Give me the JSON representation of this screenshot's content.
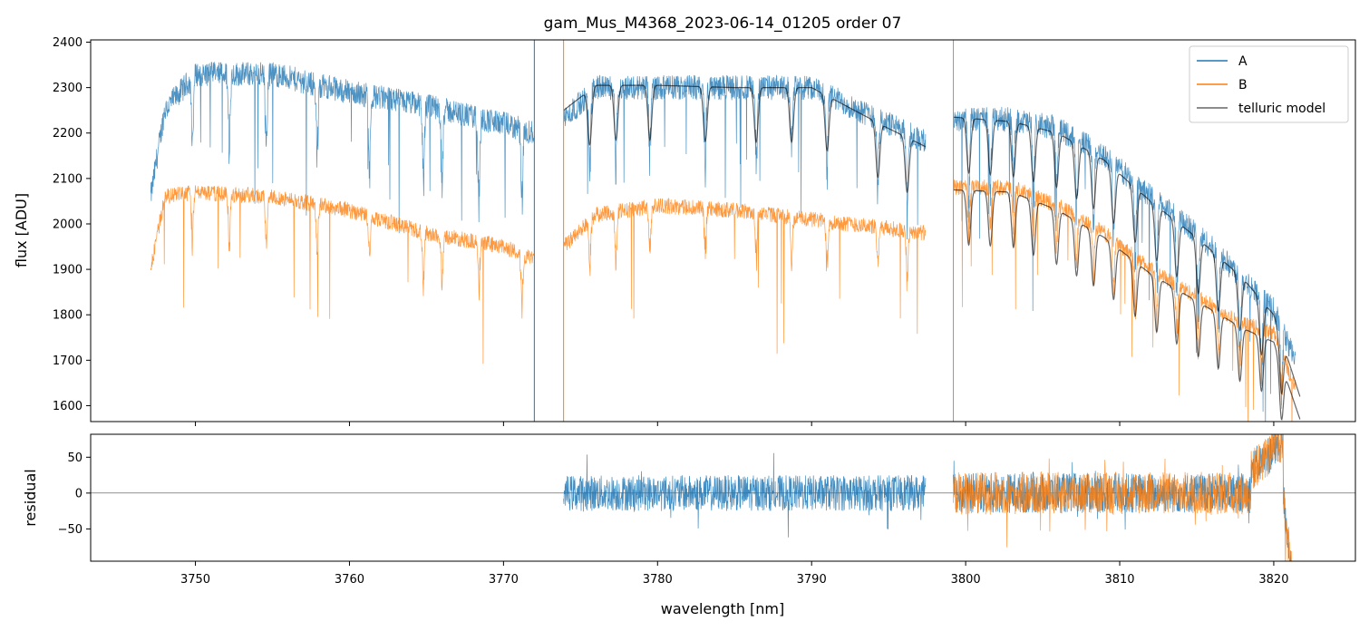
{
  "title": "gam_Mus_M4368_2023-06-14_01205  order 07",
  "colors": {
    "A": "#1f77b4",
    "B": "#ff7f0e",
    "model": "#000000"
  },
  "chart_data": [
    {
      "type": "line",
      "panel": "spectrum",
      "ylabel": "flux [ADU]",
      "xlim": [
        3743.2,
        3825.3
      ],
      "ylim": [
        1565,
        2405
      ],
      "yticks": [
        "1600",
        "1700",
        "1800",
        "1900",
        "2000",
        "2100",
        "2200",
        "2300",
        "2400"
      ],
      "xticks": [
        "3750",
        "3760",
        "3770",
        "3780",
        "3790",
        "3800",
        "3810",
        "3820"
      ],
      "legend_position": "top-right",
      "segments": [
        {
          "series": "A",
          "x_start": 3747.1,
          "x_end": 3772.0,
          "base": [
            [
              3747.1,
              2060
            ],
            [
              3748.0,
              2250
            ],
            [
              3750,
              2330
            ],
            [
              3755,
              2330
            ],
            [
              3760,
              2290
            ],
            [
              3765,
              2260
            ],
            [
              3770,
              2220
            ],
            [
              3772.0,
              2200
            ]
          ]
        },
        {
          "series": "A",
          "x_start": 3773.9,
          "x_end": 3797.4,
          "base": [
            [
              3773.9,
              2230
            ],
            [
              3776,
              2300
            ],
            [
              3780,
              2300
            ],
            [
              3785,
              2300
            ],
            [
              3790,
              2300
            ],
            [
              3795,
              2220
            ],
            [
              3797.4,
              2180
            ]
          ]
        },
        {
          "series": "A",
          "x_start": 3799.2,
          "x_end": 3821.4,
          "base": [
            [
              3799.2,
              2230
            ],
            [
              3803,
              2230
            ],
            [
              3806,
              2210
            ],
            [
              3809,
              2150
            ],
            [
              3812,
              2060
            ],
            [
              3815,
              1980
            ],
            [
              3818,
              1880
            ],
            [
              3820,
              1810
            ],
            [
              3821.4,
              1700
            ]
          ]
        },
        {
          "series": "B",
          "x_start": 3747.1,
          "x_end": 3772.0,
          "base": [
            [
              3747.1,
              1900
            ],
            [
              3748.0,
              2060
            ],
            [
              3750,
              2070
            ],
            [
              3755,
              2060
            ],
            [
              3760,
              2030
            ],
            [
              3765,
              1980
            ],
            [
              3770,
              1950
            ],
            [
              3772.0,
              1920
            ]
          ]
        },
        {
          "series": "B",
          "x_start": 3773.9,
          "x_end": 3797.4,
          "base": [
            [
              3773.9,
              1950
            ],
            [
              3776,
              2020
            ],
            [
              3780,
              2040
            ],
            [
              3785,
              2030
            ],
            [
              3790,
              2010
            ],
            [
              3795,
              1990
            ],
            [
              3797.4,
              1980
            ]
          ]
        },
        {
          "series": "B",
          "x_start": 3799.2,
          "x_end": 3821.4,
          "base": [
            [
              3799.2,
              2080
            ],
            [
              3803,
              2080
            ],
            [
              3806,
              2040
            ],
            [
              3809,
              1980
            ],
            [
              3812,
              1900
            ],
            [
              3815,
              1840
            ],
            [
              3818,
              1780
            ],
            [
              3820,
              1760
            ],
            [
              3821.4,
              1640
            ]
          ]
        },
        {
          "series": "telluric model",
          "x_start": 3773.9,
          "x_end": 3797.4,
          "base": [
            [
              3773.9,
              2250
            ],
            [
              3776,
              2305
            ],
            [
              3780,
              2305
            ],
            [
              3785,
              2300
            ],
            [
              3790,
              2300
            ],
            [
              3795,
              2210
            ],
            [
              3797.4,
              2170
            ]
          ]
        },
        {
          "series": "telluric model",
          "x_start": 3799.2,
          "x_end": 3821.7,
          "base": [
            [
              3799.2,
              2235
            ],
            [
              3803,
              2225
            ],
            [
              3806,
              2200
            ],
            [
              3809,
              2140
            ],
            [
              3812,
              2050
            ],
            [
              3815,
              1970
            ],
            [
              3818,
              1880
            ],
            [
              3820,
              1800
            ],
            [
              3821.7,
              1620
            ]
          ]
        },
        {
          "series": "telluric model",
          "x_start": 3799.2,
          "x_end": 3821.7,
          "base": [
            [
              3799.2,
              2075
            ],
            [
              3803,
              2070
            ],
            [
              3806,
              2030
            ],
            [
              3809,
              1970
            ],
            [
              3812,
              1890
            ],
            [
              3815,
              1830
            ],
            [
              3818,
              1770
            ],
            [
              3820,
              1740
            ],
            [
              3821.7,
              1570
            ]
          ]
        }
      ],
      "spikes": [
        [
          3772.0,
          2405
        ],
        [
          3773.9,
          2405
        ],
        [
          3799.2,
          2405
        ]
      ],
      "series": [
        {
          "name": "A",
          "color": "#1f77b4"
        },
        {
          "name": "B",
          "color": "#ff7f0e"
        },
        {
          "name": "telluric model",
          "color": "#000000"
        }
      ]
    },
    {
      "type": "line",
      "panel": "residual",
      "xlabel": "wavelength [nm]",
      "ylabel": "residual",
      "xlim": [
        3743.2,
        3825.3
      ],
      "ylim": [
        -95,
        82
      ],
      "yticks": [
        "50",
        "0",
        "−50"
      ],
      "xticks": [
        "3750",
        "3760",
        "3770",
        "3780",
        "3790",
        "3800",
        "3810",
        "3820"
      ],
      "zero_line": 0,
      "segments": [
        {
          "series": "A",
          "x_start": 3773.9,
          "x_end": 3797.4,
          "noise": 25
        },
        {
          "series": "A",
          "x_start": 3799.2,
          "x_end": 3821.4,
          "noise": 28
        },
        {
          "series": "B",
          "x_start": 3799.2,
          "x_end": 3821.4,
          "noise": 30
        }
      ]
    }
  ]
}
